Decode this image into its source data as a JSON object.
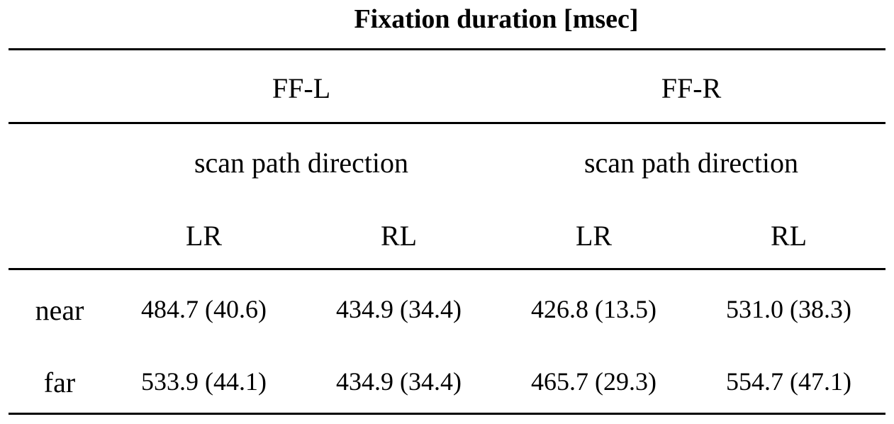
{
  "title": "Fixation duration [msec]",
  "groups": [
    {
      "label": "FF-L",
      "sub": "scan path direction",
      "cols": [
        "LR",
        "RL"
      ]
    },
    {
      "label": "FF-R",
      "sub": "scan path direction",
      "cols": [
        "LR",
        "RL"
      ]
    }
  ],
  "rows": [
    {
      "label": "near",
      "values": [
        "484.7 (40.6)",
        "434.9 (34.4)",
        "426.8 (13.5)",
        "531.0 (38.3)"
      ]
    },
    {
      "label": "far",
      "values": [
        "533.9 (44.1)",
        "434.9 (34.4)",
        "465.7 (29.3)",
        "554.7 (47.1)"
      ]
    }
  ]
}
